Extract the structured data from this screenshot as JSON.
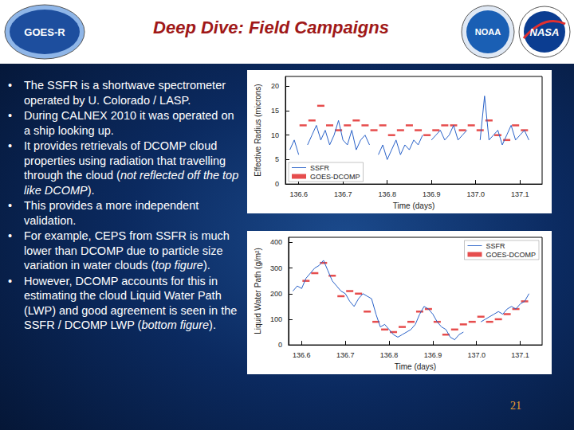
{
  "slide": {
    "title": "Deep Dive: Field Campaigns",
    "logos": [
      "GOES-R",
      "NOAA",
      "NASA"
    ],
    "bullets": [
      [
        {
          "text": "The SSFR is a shortwave spectrometer operated by U. Colorado / LASP.",
          "italic": false
        }
      ],
      [
        {
          "text": "During CALNEX 2010 it was operated on a ship looking up.",
          "italic": false
        }
      ],
      [
        {
          "text": "It provides retrievals of DCOMP cloud properties using radiation that travelling through the cloud (",
          "italic": false
        },
        {
          "text": "not reflected off the top like DCOMP",
          "italic": true
        },
        {
          "text": ").",
          "italic": false
        }
      ],
      [
        {
          "text": "This provides a more independent validation.",
          "italic": false
        }
      ],
      [
        {
          "text": "For example, CEPS from SSFR is much lower than DCOMP due to particle size variation in water clouds (",
          "italic": false
        },
        {
          "text": "top figure",
          "italic": true
        },
        {
          "text": ").",
          "italic": false
        }
      ],
      [
        {
          "text": "However, DCOMP accounts for this in estimating the cloud Liquid Water Path (LWP) and good agreement is seen in the SSFR  / DCOMP LWP (",
          "italic": false
        },
        {
          "text": "bottom figure",
          "italic": true
        },
        {
          "text": ").",
          "italic": false
        }
      ]
    ],
    "page_number": "21"
  },
  "chart_data": [
    {
      "type": "line",
      "x_label": "Time (days)",
      "y_label": "Effective Radius (microns)",
      "xlim": [
        136.57,
        137.15
      ],
      "xticks": [
        136.6,
        136.7,
        136.8,
        136.9,
        {
          "value": 137,
          "label": "137.0"
        },
        137.1
      ],
      "ylim": [
        0,
        22
      ],
      "yticks": [
        0,
        5,
        10,
        15,
        20
      ],
      "grid": false,
      "legend": "lower left",
      "series": [
        {
          "name": "SSFR",
          "color": "#2a62c8",
          "type": "line",
          "line_style": "solid",
          "x": [
            136.58,
            136.59,
            136.6,
            136.61,
            136.62,
            136.63,
            136.64,
            136.65,
            136.66,
            136.67,
            136.68,
            136.69,
            136.7,
            136.71,
            136.72,
            136.73,
            136.74,
            136.75,
            136.76,
            136.77,
            136.78,
            136.79,
            136.8,
            136.81,
            136.82,
            136.83,
            136.84,
            136.85,
            136.86,
            136.87,
            136.88,
            136.89,
            136.9,
            136.91,
            136.92,
            136.93,
            136.94,
            136.95,
            136.96,
            136.97,
            136.98,
            136.99,
            137.0,
            137.01,
            137.02,
            137.03,
            137.04,
            137.05,
            137.06,
            137.07,
            137.08,
            137.09,
            137.1,
            137.11,
            137.12
          ],
          "values": [
            7,
            9,
            6,
            null,
            8,
            10,
            12,
            9,
            11,
            8,
            10,
            13,
            9,
            8,
            11,
            7,
            9,
            10,
            8,
            null,
            6,
            8,
            5,
            7,
            9,
            6,
            8,
            7,
            9,
            8,
            10,
            null,
            9,
            10,
            11,
            9,
            10,
            12,
            9,
            10,
            11,
            null,
            null,
            9,
            18,
            9,
            10,
            11,
            8,
            10,
            12,
            9,
            10,
            11,
            9
          ]
        },
        {
          "name": "GOES-DCOMP",
          "color": "#e02020",
          "type": "scatter",
          "marker": "dash",
          "x": [
            136.61,
            136.63,
            136.65,
            136.67,
            136.69,
            136.71,
            136.73,
            136.75,
            136.77,
            136.79,
            136.81,
            136.83,
            136.85,
            136.87,
            136.89,
            136.91,
            136.93,
            136.95,
            136.97,
            136.99,
            137.01,
            137.03,
            137.05,
            137.07,
            137.09,
            137.11
          ],
          "values": [
            12,
            13,
            16,
            12,
            11,
            12,
            13,
            12,
            11,
            12,
            10,
            11,
            12,
            11,
            10,
            11,
            12,
            12,
            11,
            12,
            11,
            13,
            10,
            9,
            12,
            11
          ]
        }
      ]
    },
    {
      "type": "line",
      "x_label": "Time (days)",
      "y_label": "Liquid Water Path (g/m²)",
      "xlim": [
        136.57,
        137.15
      ],
      "xticks": [
        136.6,
        136.7,
        136.8,
        136.9,
        {
          "value": 137,
          "label": "137.0"
        },
        137.1
      ],
      "ylim": [
        0,
        420
      ],
      "yticks": [
        0,
        100,
        200,
        300,
        400
      ],
      "grid": false,
      "legend": "upper right",
      "series": [
        {
          "name": "SSFR",
          "color": "#2a62c8",
          "type": "line",
          "line_style": "solid",
          "x": [
            136.58,
            136.59,
            136.6,
            136.61,
            136.62,
            136.63,
            136.64,
            136.65,
            136.66,
            136.67,
            136.68,
            136.69,
            136.7,
            136.71,
            136.72,
            136.73,
            136.74,
            136.75,
            136.76,
            136.77,
            136.78,
            136.79,
            136.8,
            136.81,
            136.82,
            136.83,
            136.84,
            136.85,
            136.86,
            136.87,
            136.88,
            136.89,
            136.9,
            136.91,
            136.92,
            136.93,
            136.94,
            136.95,
            136.96,
            136.97,
            136.98,
            136.99,
            137.0,
            137.01,
            137.02,
            137.03,
            137.04,
            137.05,
            137.06,
            137.07,
            137.08,
            137.09,
            137.1,
            137.11,
            137.12
          ],
          "values": [
            210,
            230,
            220,
            260,
            280,
            300,
            310,
            330,
            290,
            250,
            230,
            210,
            200,
            170,
            150,
            180,
            200,
            190,
            180,
            120,
            70,
            80,
            60,
            40,
            30,
            40,
            50,
            60,
            80,
            120,
            150,
            140,
            120,
            90,
            70,
            60,
            30,
            20,
            40,
            50,
            null,
            null,
            null,
            90,
            100,
            110,
            120,
            130,
            120,
            140,
            150,
            140,
            160,
            170,
            200
          ]
        },
        {
          "name": "GOES-DCOMP",
          "color": "#e02020",
          "type": "scatter",
          "marker": "dash",
          "x": [
            136.61,
            136.63,
            136.65,
            136.67,
            136.69,
            136.71,
            136.73,
            136.75,
            136.77,
            136.79,
            136.81,
            136.83,
            136.85,
            136.87,
            136.89,
            136.91,
            136.93,
            136.95,
            136.97,
            136.99,
            137.01,
            137.03,
            137.05,
            137.07,
            137.09,
            137.11
          ],
          "values": [
            250,
            280,
            320,
            270,
            190,
            210,
            200,
            130,
            90,
            60,
            50,
            70,
            90,
            130,
            140,
            90,
            40,
            60,
            80,
            90,
            110,
            90,
            100,
            120,
            140,
            170
          ]
        }
      ]
    }
  ]
}
